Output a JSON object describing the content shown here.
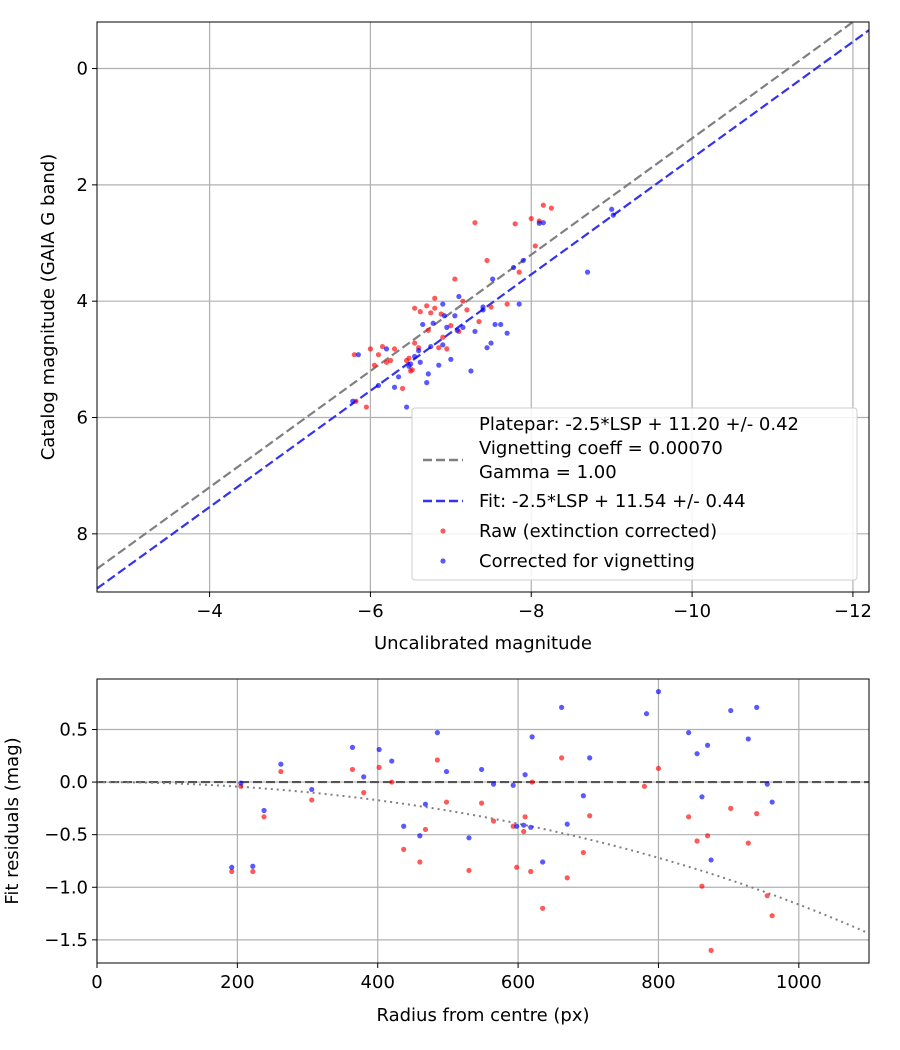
{
  "colors": {
    "raw": "#ff0000",
    "corrected": "#0000ff",
    "platepar_line": "#808080",
    "fit_line": "#3333ee",
    "zero_line": "#555555",
    "vignetting_curve": "#808080",
    "grid": "#b0b0b0"
  },
  "chart_data": [
    {
      "type": "scatter",
      "xlabel": "Uncalibrated magnitude",
      "ylabel": "Catalog magnitude (GAIA G band)",
      "xlim": [
        -2.6,
        -12.2
      ],
      "ylim": [
        9.0,
        -0.8
      ],
      "x_inverted": true,
      "y_inverted": true,
      "xticks": [
        -4,
        -6,
        -8,
        -10,
        -12
      ],
      "xtick_labels": [
        "−4",
        "−6",
        "−8",
        "−10",
        "−12"
      ],
      "yticks": [
        0,
        2,
        4,
        6,
        8
      ],
      "ytick_labels": [
        "0",
        "2",
        "4",
        "6",
        "8"
      ],
      "grid": true,
      "legend_position": "lower-right",
      "legend": {
        "platepar_lines": [
          "Platepar: -2.5*LSP + 11.20 +/- 0.42",
          "Vignetting coeff = 0.00070",
          "Gamma = 1.00"
        ],
        "fit": "Fit: -2.5*LSP + 11.54 +/- 0.44",
        "raw": "Raw (extinction corrected)",
        "corrected": "Corrected for vignetting"
      },
      "lines": [
        {
          "name": "platepar",
          "slope": 1.0,
          "intercept": 11.2,
          "style": "dashed"
        },
        {
          "name": "fit",
          "slope": 1.0,
          "intercept": 11.54,
          "style": "dashed"
        }
      ],
      "series": [
        {
          "name": "Raw (extinction corrected)",
          "points": [
            [
              -5.8,
              4.92
            ],
            [
              -5.82,
              5.72
            ],
            [
              -5.95,
              5.82
            ],
            [
              -6.0,
              4.82
            ],
            [
              -6.05,
              5.1
            ],
            [
              -6.1,
              4.92
            ],
            [
              -6.15,
              4.78
            ],
            [
              -6.2,
              5.05
            ],
            [
              -6.25,
              5.02
            ],
            [
              -6.3,
              4.82
            ],
            [
              -6.45,
              5.02
            ],
            [
              -6.48,
              4.98
            ],
            [
              -6.5,
              5.2
            ],
            [
              -6.52,
              5.18
            ],
            [
              -6.55,
              4.72
            ],
            [
              -6.55,
              4.12
            ],
            [
              -6.6,
              4.8
            ],
            [
              -6.62,
              4.18
            ],
            [
              -6.7,
              4.08
            ],
            [
              -6.72,
              4.5
            ],
            [
              -6.75,
              4.2
            ],
            [
              -6.8,
              4.12
            ],
            [
              -6.8,
              3.95
            ],
            [
              -6.85,
              4.8
            ],
            [
              -6.88,
              4.22
            ],
            [
              -6.9,
              4.62
            ],
            [
              -6.95,
              4.82
            ],
            [
              -7.0,
              4.42
            ],
            [
              -7.05,
              3.62
            ],
            [
              -7.1,
              4.52
            ],
            [
              -7.15,
              4.0
            ],
            [
              -7.2,
              4.15
            ],
            [
              -7.3,
              2.65
            ],
            [
              -7.45,
              3.3
            ],
            [
              -7.5,
              4.1
            ],
            [
              -7.7,
              4.05
            ],
            [
              -7.8,
              2.67
            ],
            [
              -7.85,
              3.5
            ],
            [
              -8.0,
              2.58
            ],
            [
              -8.05,
              3.05
            ],
            [
              -8.1,
              2.62
            ],
            [
              -8.15,
              2.35
            ],
            [
              -8.25,
              2.4
            ],
            [
              -7.35,
              4.35
            ],
            [
              -6.4,
              5.5
            ]
          ]
        },
        {
          "name": "Corrected for vignetting",
          "points": [
            [
              -5.78,
              5.72
            ],
            [
              -5.85,
              4.92
            ],
            [
              -6.1,
              5.45
            ],
            [
              -6.2,
              4.82
            ],
            [
              -6.3,
              5.48
            ],
            [
              -6.35,
              5.3
            ],
            [
              -6.45,
              5.82
            ],
            [
              -6.48,
              5.12
            ],
            [
              -6.5,
              5.08
            ],
            [
              -6.55,
              4.95
            ],
            [
              -6.6,
              4.85
            ],
            [
              -6.62,
              5.05
            ],
            [
              -6.65,
              4.4
            ],
            [
              -6.7,
              5.4
            ],
            [
              -6.72,
              5.25
            ],
            [
              -6.75,
              4.78
            ],
            [
              -6.78,
              4.38
            ],
            [
              -6.85,
              5.1
            ],
            [
              -6.9,
              4.75
            ],
            [
              -6.92,
              4.25
            ],
            [
              -6.95,
              4.45
            ],
            [
              -7.0,
              5.0
            ],
            [
              -7.05,
              4.25
            ],
            [
              -7.08,
              4.5
            ],
            [
              -7.1,
              3.92
            ],
            [
              -7.15,
              4.45
            ],
            [
              -7.25,
              5.2
            ],
            [
              -7.3,
              4.52
            ],
            [
              -7.4,
              4.1
            ],
            [
              -7.45,
              4.8
            ],
            [
              -7.5,
              4.72
            ],
            [
              -7.52,
              3.62
            ],
            [
              -7.55,
              4.4
            ],
            [
              -7.62,
              4.4
            ],
            [
              -7.7,
              4.55
            ],
            [
              -7.78,
              3.42
            ],
            [
              -7.85,
              4.05
            ],
            [
              -7.9,
              3.3
            ],
            [
              -8.1,
              2.66
            ],
            [
              -8.15,
              2.65
            ],
            [
              -8.7,
              3.5
            ],
            [
              -9.0,
              2.42
            ],
            [
              -9.02,
              2.52
            ],
            [
              -7.4,
              4.15
            ],
            [
              -6.9,
              4.05
            ]
          ]
        }
      ]
    },
    {
      "type": "scatter",
      "xlabel": "Radius from centre (px)",
      "ylabel": "Fit residuals (mag)",
      "xlim": [
        0,
        1100
      ],
      "ylim": [
        -1.72,
        0.98
      ],
      "xticks": [
        0,
        200,
        400,
        600,
        800,
        1000
      ],
      "xtick_labels": [
        "0",
        "200",
        "400",
        "600",
        "800",
        "1000"
      ],
      "yticks": [
        0.5,
        0.0,
        -0.5,
        -1.0,
        -1.5
      ],
      "ytick_labels": [
        "0.5",
        "0.0",
        "−0.5",
        "−1.0",
        "−1.5"
      ],
      "grid": true,
      "reference_line": {
        "y": 0.0,
        "style": "dashed"
      },
      "vignetting_curve": {
        "formula": "-2.5*log10(cos(k*r)^4)",
        "k": 0.0007,
        "style": "dotted"
      },
      "series": [
        {
          "name": "Raw (extinction corrected)",
          "points": [
            [
              192,
              -0.85
            ],
            [
              205,
              -0.04
            ],
            [
              222,
              -0.85
            ],
            [
              238,
              -0.33
            ],
            [
              262,
              0.1
            ],
            [
              306,
              -0.17
            ],
            [
              364,
              0.12
            ],
            [
              380,
              -0.1
            ],
            [
              402,
              0.14
            ],
            [
              420,
              0.0
            ],
            [
              437,
              -0.64
            ],
            [
              460,
              -0.76
            ],
            [
              468,
              -0.45
            ],
            [
              485,
              0.21
            ],
            [
              498,
              -0.19
            ],
            [
              530,
              -0.84
            ],
            [
              548,
              -0.2
            ],
            [
              565,
              -0.37
            ],
            [
              593,
              -0.42
            ],
            [
              598,
              -0.81
            ],
            [
              608,
              -0.47
            ],
            [
              610,
              -0.33
            ],
            [
              618,
              -0.85
            ],
            [
              620,
              0.0
            ],
            [
              635,
              -1.2
            ],
            [
              662,
              0.23
            ],
            [
              670,
              -0.91
            ],
            [
              693,
              -0.67
            ],
            [
              702,
              -0.32
            ],
            [
              780,
              -0.04
            ],
            [
              800,
              0.13
            ],
            [
              843,
              -0.33
            ],
            [
              855,
              -0.56
            ],
            [
              862,
              -0.99
            ],
            [
              870,
              -0.51
            ],
            [
              875,
              -1.6
            ],
            [
              903,
              -0.25
            ],
            [
              928,
              -0.58
            ],
            [
              940,
              -0.3
            ],
            [
              955,
              -1.08
            ],
            [
              962,
              -1.27
            ]
          ]
        },
        {
          "name": "Corrected for vignetting",
          "points": [
            [
              192,
              -0.81
            ],
            [
              205,
              -0.01
            ],
            [
              222,
              -0.8
            ],
            [
              238,
              -0.27
            ],
            [
              262,
              0.17
            ],
            [
              306,
              -0.07
            ],
            [
              364,
              0.33
            ],
            [
              380,
              0.05
            ],
            [
              402,
              0.31
            ],
            [
              420,
              0.2
            ],
            [
              437,
              -0.42
            ],
            [
              460,
              -0.51
            ],
            [
              468,
              -0.21
            ],
            [
              485,
              0.47
            ],
            [
              498,
              0.1
            ],
            [
              530,
              -0.53
            ],
            [
              548,
              0.12
            ],
            [
              565,
              -0.02
            ],
            [
              593,
              -0.03
            ],
            [
              598,
              -0.42
            ],
            [
              608,
              -0.41
            ],
            [
              610,
              0.07
            ],
            [
              618,
              -0.43
            ],
            [
              620,
              0.43
            ],
            [
              635,
              -0.76
            ],
            [
              662,
              0.71
            ],
            [
              670,
              -0.4
            ],
            [
              693,
              -0.13
            ],
            [
              702,
              0.23
            ],
            [
              783,
              0.65
            ],
            [
              800,
              0.86
            ],
            [
              843,
              0.47
            ],
            [
              855,
              0.27
            ],
            [
              862,
              -0.14
            ],
            [
              870,
              0.35
            ],
            [
              875,
              -0.74
            ],
            [
              903,
              0.68
            ],
            [
              928,
              0.41
            ],
            [
              940,
              0.71
            ],
            [
              955,
              -0.02
            ],
            [
              962,
              -0.19
            ]
          ]
        }
      ]
    }
  ]
}
